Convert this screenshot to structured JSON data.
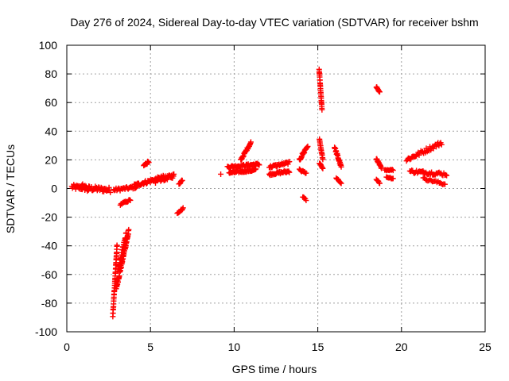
{
  "chart_data": {
    "type": "scatter",
    "title": "Day 276 of 2024, Sidereal Day-to-day VTEC variation (SDTVAR) for receiver bshm",
    "xlabel": "GPS time / hours",
    "ylabel": "SDTVAR / TECUs",
    "xlim": [
      0,
      25
    ],
    "ylim": [
      -100,
      100
    ],
    "xticks": [
      0,
      5,
      10,
      15,
      20,
      25
    ],
    "yticks": [
      -100,
      -80,
      -60,
      -40,
      -20,
      0,
      20,
      40,
      60,
      80,
      100
    ],
    "xtick_labels": [
      "0",
      "5",
      "10",
      "15",
      "20",
      "25"
    ],
    "ytick_labels": [
      "-100",
      "-80",
      "-60",
      "-40",
      "-20",
      "0",
      "20",
      "40",
      "60",
      "80",
      "100"
    ],
    "grid": true,
    "marker": "+",
    "marker_color": "#ff0000",
    "series": [
      {
        "name": "SDTVAR",
        "segments": [
          {
            "x": [
              0.3,
              2.6
            ],
            "y": [
              1,
              -1
            ],
            "n": 60,
            "jitter": 1.8
          },
          {
            "x": [
              0.9,
              1.3
            ],
            "y": [
              3,
              -1
            ],
            "n": 18,
            "jitter": 1.5
          },
          {
            "x": [
              2.8,
              4.2
            ],
            "y": [
              -1,
              1
            ],
            "n": 30,
            "jitter": 1.0
          },
          {
            "x": [
              2.75,
              3.0
            ],
            "y": [
              -89,
              -40
            ],
            "n": 40,
            "jitter": 1.0
          },
          {
            "x": [
              2.95,
              3.7
            ],
            "y": [
              -70,
              -30
            ],
            "n": 60,
            "jitter": 1.5
          },
          {
            "x": [
              3.05,
              3.55
            ],
            "y": [
              -58,
              -32
            ],
            "n": 30,
            "jitter": 2.0
          },
          {
            "x": [
              3.2,
              3.8
            ],
            "y": [
              -11,
              -8
            ],
            "n": 14,
            "jitter": 0.6
          },
          {
            "x": [
              4.0,
              5.8
            ],
            "y": [
              2,
              8
            ],
            "n": 50,
            "jitter": 1.2
          },
          {
            "x": [
              4.6,
              4.9
            ],
            "y": [
              16,
              19
            ],
            "n": 14,
            "jitter": 0.8
          },
          {
            "x": [
              5.3,
              6.4
            ],
            "y": [
              5,
              9
            ],
            "n": 40,
            "jitter": 1.4
          },
          {
            "x": [
              6.7,
              6.9
            ],
            "y": [
              3,
              6
            ],
            "n": 8,
            "jitter": 0.5
          },
          {
            "x": [
              6.6,
              6.95
            ],
            "y": [
              -17,
              -14
            ],
            "n": 10,
            "jitter": 0.6
          },
          {
            "x": [
              9.2,
              9.2
            ],
            "y": [
              10,
              10
            ],
            "n": 1,
            "jitter": 0
          },
          {
            "x": [
              9.6,
              11.5
            ],
            "y": [
              15,
              17
            ],
            "n": 50,
            "jitter": 0.8
          },
          {
            "x": [
              9.7,
              11.3
            ],
            "y": [
              11,
              13
            ],
            "n": 45,
            "jitter": 0.8
          },
          {
            "x": [
              10.4,
              11.0
            ],
            "y": [
              20,
              32
            ],
            "n": 26,
            "jitter": 0.8
          },
          {
            "x": [
              12.1,
              13.3
            ],
            "y": [
              10,
              12
            ],
            "n": 30,
            "jitter": 0.8
          },
          {
            "x": [
              12.1,
              13.3
            ],
            "y": [
              15,
              18
            ],
            "n": 30,
            "jitter": 0.8
          },
          {
            "x": [
              13.9,
              14.4
            ],
            "y": [
              20,
              30
            ],
            "n": 18,
            "jitter": 1.2
          },
          {
            "x": [
              13.9,
              14.3
            ],
            "y": [
              13,
              11
            ],
            "n": 10,
            "jitter": 0.6
          },
          {
            "x": [
              14.1,
              14.3
            ],
            "y": [
              -6,
              -8
            ],
            "n": 5,
            "jitter": 0.5
          },
          {
            "x": [
              15.08,
              15.25
            ],
            "y": [
              83,
              55
            ],
            "n": 26,
            "jitter": 0.5
          },
          {
            "x": [
              15.1,
              15.3
            ],
            "y": [
              34,
              20
            ],
            "n": 16,
            "jitter": 0.6
          },
          {
            "x": [
              15.1,
              15.3
            ],
            "y": [
              18,
              14
            ],
            "n": 8,
            "jitter": 0.5
          },
          {
            "x": [
              16.0,
              16.4
            ],
            "y": [
              29,
              15
            ],
            "n": 24,
            "jitter": 1.0
          },
          {
            "x": [
              16.1,
              16.4
            ],
            "y": [
              7,
              4
            ],
            "n": 8,
            "jitter": 0.5
          },
          {
            "x": [
              18.5,
              18.7
            ],
            "y": [
              71,
              67
            ],
            "n": 10,
            "jitter": 0.5
          },
          {
            "x": [
              18.5,
              18.8
            ],
            "y": [
              21,
              14
            ],
            "n": 14,
            "jitter": 0.8
          },
          {
            "x": [
              18.5,
              18.7
            ],
            "y": [
              6,
              4
            ],
            "n": 6,
            "jitter": 0.4
          },
          {
            "x": [
              19.0,
              19.5
            ],
            "y": [
              13,
              13
            ],
            "n": 10,
            "jitter": 0.4
          },
          {
            "x": [
              19.1,
              19.5
            ],
            "y": [
              8,
              7
            ],
            "n": 8,
            "jitter": 0.4
          },
          {
            "x": [
              20.3,
              22.4
            ],
            "y": [
              20,
              32
            ],
            "n": 40,
            "jitter": 1.5
          },
          {
            "x": [
              20.5,
              22.7
            ],
            "y": [
              12,
              10
            ],
            "n": 40,
            "jitter": 1.2
          },
          {
            "x": [
              21.3,
              22.6
            ],
            "y": [
              7,
              3
            ],
            "n": 20,
            "jitter": 0.8
          }
        ]
      }
    ]
  }
}
